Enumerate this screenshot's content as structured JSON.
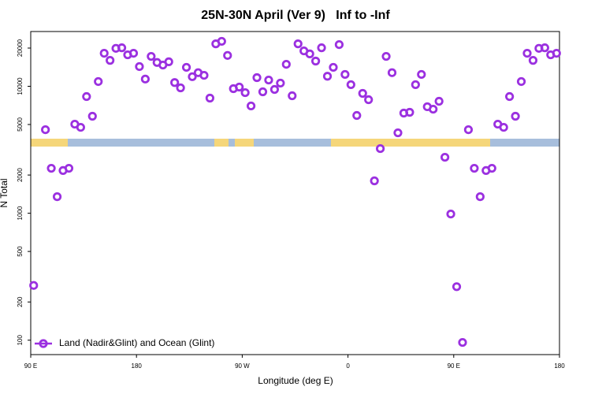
{
  "chart_data": {
    "type": "scatter",
    "title": "25N-30N April (Ver 9)   Inf to -Inf",
    "x_label": "Longitude (deg E)",
    "y_label": "N Total",
    "xlim": [
      90,
      540
    ],
    "xticks": [
      {
        "value": 90,
        "label": "90 E"
      },
      180,
      {
        "value": 270,
        "label": "90 W"
      },
      {
        "value": 360,
        "label": "0"
      },
      {
        "value": 450,
        "label": "90 E"
      },
      {
        "value": 540,
        "label": "180"
      }
    ],
    "ylim": [
      77,
      27000
    ],
    "ylog": true,
    "yticks": [
      100,
      200,
      500,
      1000,
      2000,
      5000,
      10000,
      20000
    ],
    "legend": "bottom-left",
    "series": [
      {
        "name": "Land (Nadir&Glint) and Ocean (Glint)",
        "color": "#9b30e0",
        "x": [
          92.5,
          102.5,
          107.5,
          112.5,
          117.5,
          122.5,
          127.5,
          132.5,
          137.5,
          142.5,
          147.5,
          152.5,
          157.5,
          162.5,
          167.5,
          172.5,
          177.5,
          182.5,
          187.5,
          192.5,
          197.5,
          202.5,
          207.5,
          212.5,
          217.5,
          222.5,
          227.5,
          232.5,
          237.5,
          242.5,
          247.5,
          252.5,
          257.5,
          262.5,
          267.5,
          272.5,
          277.5,
          282.5,
          287.5,
          292.5,
          297.5,
          302.5,
          307.5,
          312.5,
          317.5,
          322.5,
          327.5,
          332.5,
          337.5,
          342.5,
          347.5,
          352.5,
          357.5,
          362.5,
          367.5,
          372.5,
          377.5,
          382.5,
          387.5,
          392.5,
          397.5,
          402.5,
          407.5,
          412.5,
          417.5,
          422.5,
          427.5,
          432.5,
          437.5,
          442.5,
          447.5,
          452.5,
          457.5,
          462.5,
          467.5,
          472.5,
          477.5,
          482.5,
          487.5,
          492.5,
          497.5,
          502.5,
          507.5,
          512.5,
          517.5,
          522.5,
          527.5,
          532.5,
          537.5
        ],
        "values": [
          270,
          4550,
          2260,
          1350,
          2170,
          2260,
          5030,
          4750,
          8300,
          5810,
          10900,
          18200,
          16000,
          19900,
          20100,
          17700,
          18200,
          14300,
          11400,
          17200,
          15400,
          14700,
          15600,
          10700,
          9720,
          14100,
          11900,
          12800,
          12200,
          8070,
          21600,
          22600,
          17500,
          9580,
          9860,
          8910,
          7000,
          11700,
          9050,
          11200,
          9440,
          10600,
          14900,
          8420,
          21600,
          19000,
          18000,
          15800,
          20100,
          12000,
          14100,
          21300,
          12400,
          10300,
          5890,
          8790,
          7840,
          1800,
          3230,
          17200,
          12800,
          4300,
          6150,
          6240,
          10300,
          12400,
          6900,
          6600,
          7620,
          2760,
          986,
          264,
          96,
          4550,
          2260,
          1350,
          2170,
          2260,
          5030,
          4750,
          8300,
          5810,
          10900,
          18200,
          16000,
          19900,
          20100,
          17700,
          18200
        ]
      }
    ]
  }
}
